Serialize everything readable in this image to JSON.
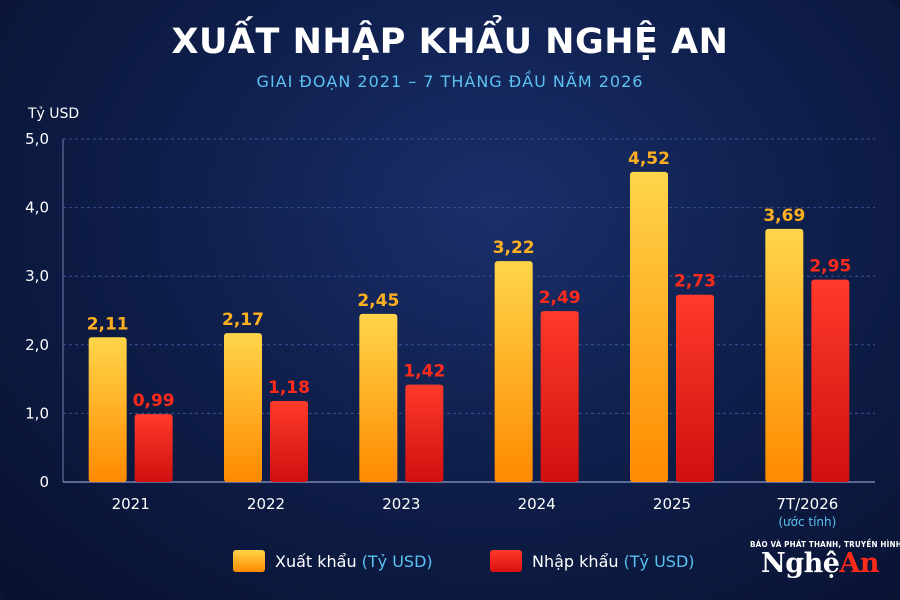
{
  "title": "XUẤT NHẬP KHẨU NGHỆ AN",
  "subtitle": "GIAI ĐOẠN 2021 – 7 THÁNG ĐẦU NĂM 2026",
  "colors": {
    "background": "#0f1f4c",
    "export": "#ffa000",
    "import": "#e01818",
    "export_label": "#ffb020",
    "import_label": "#ff2a1a",
    "subtitle": "#5bc2f2"
  },
  "chart_data": {
    "type": "bar",
    "ylabel": "Tỷ USD",
    "ylim": [
      0,
      5
    ],
    "yticks": [
      "0",
      "1,0",
      "2,0",
      "3,0",
      "4,0",
      "5,0"
    ],
    "grid": true,
    "legend_position": "bottom",
    "categories": [
      "2021",
      "2022",
      "2023",
      "2024",
      "2025",
      "7T/2026"
    ],
    "category_notes": [
      "",
      "",
      "",
      "",
      "",
      "(ước tính)"
    ],
    "series": [
      {
        "name": "Xuất khẩu",
        "values": [
          2.11,
          2.17,
          2.45,
          3.22,
          4.52,
          3.69
        ],
        "labels": [
          "2,11",
          "2,17",
          "2,45",
          "3,22",
          "4,52",
          "3,69"
        ]
      },
      {
        "name": "Nhập khẩu",
        "values": [
          0.99,
          1.18,
          1.42,
          2.49,
          2.73,
          2.95
        ],
        "labels": [
          "0,99",
          "1,18",
          "1,42",
          "2,49",
          "2,73",
          "2,95"
        ]
      }
    ]
  },
  "legend": {
    "export_label": "Xuất khẩu",
    "import_label": "Nhập khẩu",
    "unit": "(Tỷ USD)"
  },
  "logo": {
    "top_text": "BÁO VÀ PHÁT THANH, TRUYỀN HÌNH",
    "main_text_1": "Nghệ",
    "main_text_2": "An"
  }
}
